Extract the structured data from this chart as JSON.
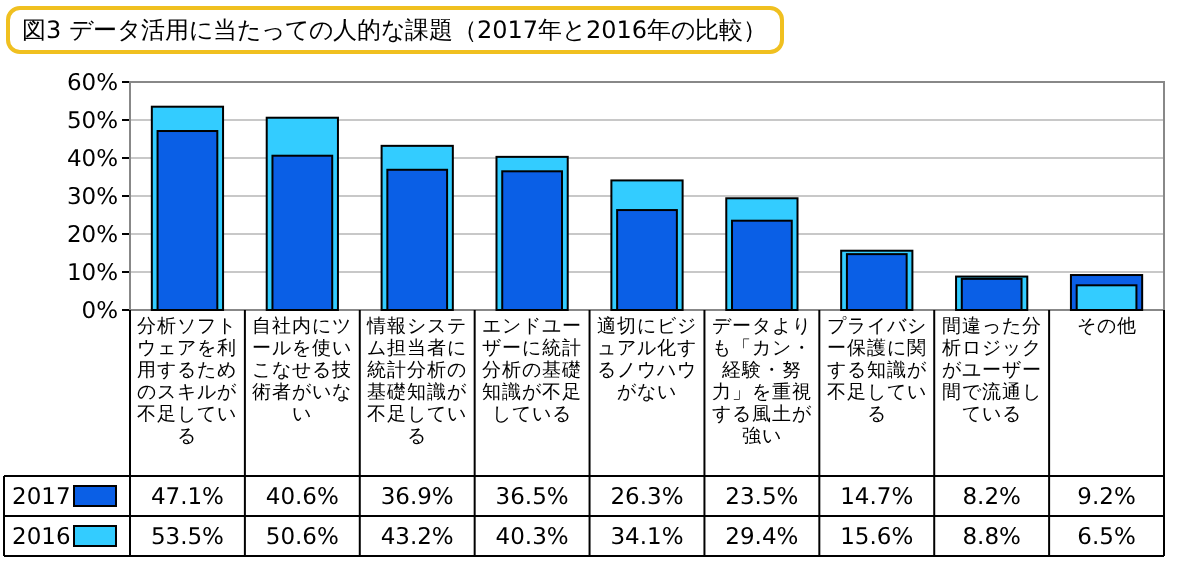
{
  "chart_data": {
    "type": "bar",
    "title": "図3 データ活用に当たっての人的な課題（2017年と2016年の比較）",
    "categories": [
      "分析ソフトウェアを利用するためのスキルが不足している",
      "自社内にツールを使いこなせる技術者がいない",
      "情報システム担当者に統計分析の基礎知識が不足している",
      "エンドユーザーに統計分析の基礎知識が不足している",
      "適切にビジュアル化するノウハウがない",
      "データよりも「カン・経験・努力」を重視する風土が強い",
      "プライバシー保護に関する知識が不足している",
      "間違った分析ロジックがユーザー間で流通している",
      "その他"
    ],
    "series": [
      {
        "name": "2017",
        "color": "#0a5fe6",
        "values": [
          47.1,
          40.6,
          36.9,
          36.5,
          26.3,
          23.5,
          14.7,
          8.2,
          9.2
        ],
        "value_labels": [
          "47.1%",
          "40.6%",
          "36.9%",
          "36.5%",
          "26.3%",
          "23.5%",
          "14.7%",
          "8.2%",
          "9.2%"
        ]
      },
      {
        "name": "2016",
        "color": "#33ccff",
        "values": [
          53.5,
          50.6,
          43.2,
          40.3,
          34.1,
          29.4,
          15.6,
          8.8,
          6.5
        ],
        "value_labels": [
          "53.5%",
          "50.6%",
          "43.2%",
          "40.3%",
          "34.1%",
          "29.4%",
          "15.6%",
          "8.8%",
          "6.5%"
        ]
      }
    ],
    "ylim": [
      0,
      60
    ],
    "yticks": [
      {
        "value": 0,
        "label": "0%"
      },
      {
        "value": 10,
        "label": "10%"
      },
      {
        "value": 20,
        "label": "20%"
      },
      {
        "value": 30,
        "label": "30%"
      },
      {
        "value": 40,
        "label": "40%"
      },
      {
        "value": 50,
        "label": "50%"
      },
      {
        "value": 60,
        "label": "60%"
      }
    ],
    "grid": "y",
    "legend": "bottom left"
  }
}
